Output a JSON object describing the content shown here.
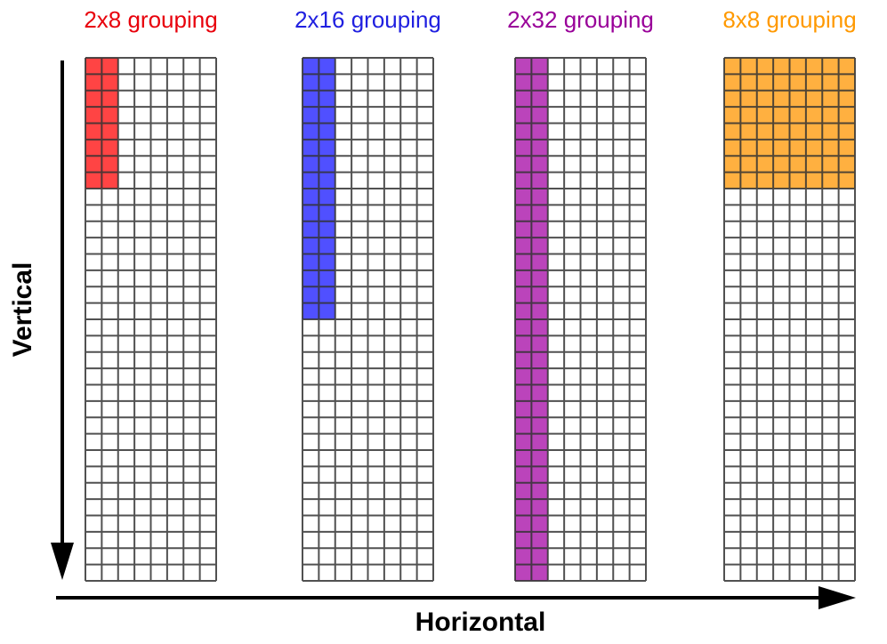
{
  "groups": [
    {
      "title": "2x8 grouping",
      "color": "#ff4444",
      "text_color": "#e8000b"
    },
    {
      "title": "2x16 grouping",
      "color": "#5050ff",
      "text_color": "#2020e0"
    },
    {
      "title": "2x32 grouping",
      "color": "#bb44bb",
      "text_color": "#990099"
    },
    {
      "title": "8x8 grouping",
      "color": "#ffb040",
      "text_color": "#ff9900"
    }
  ],
  "axes": {
    "vertical": "Vertical",
    "horizontal": "Horizontal"
  }
}
